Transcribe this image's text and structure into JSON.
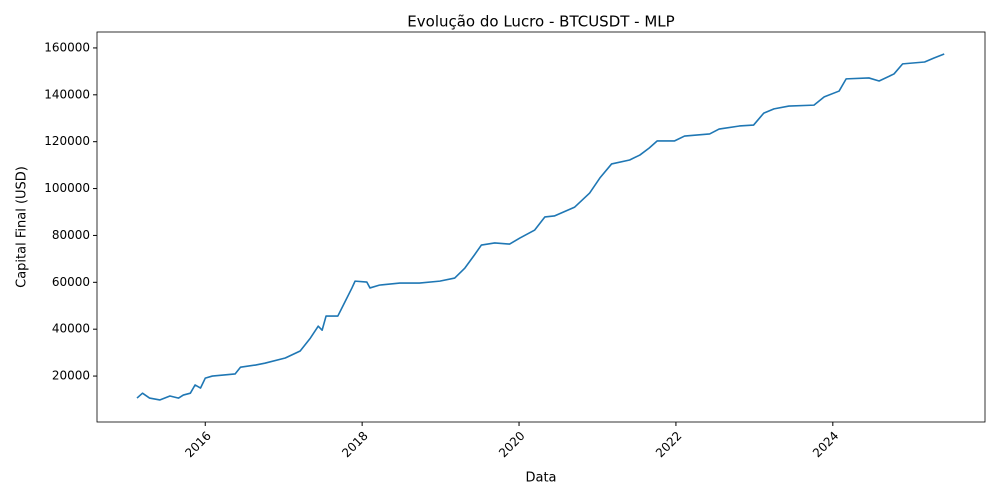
{
  "chart_data": {
    "type": "line",
    "title": "Evolução do Lucro - BTCUSDT - MLP",
    "x_label": "Data",
    "y_label": "Capital Final (USD)",
    "x": [
      2015.13,
      2015.2,
      2015.29,
      2015.42,
      2015.55,
      2015.66,
      2015.72,
      2015.81,
      2015.87,
      2015.94,
      2016.0,
      2016.09,
      2016.38,
      2016.45,
      2016.64,
      2016.76,
      2017.02,
      2017.21,
      2017.34,
      2017.44,
      2017.49,
      2017.54,
      2017.69,
      2017.78,
      2017.87,
      2017.91,
      2018.06,
      2018.1,
      2018.22,
      2018.48,
      2018.73,
      2018.99,
      2019.18,
      2019.31,
      2019.43,
      2019.52,
      2019.69,
      2019.88,
      2020.01,
      2020.2,
      2020.33,
      2020.45,
      2020.71,
      2020.9,
      2021.03,
      2021.18,
      2021.41,
      2021.54,
      2021.66,
      2021.76,
      2021.98,
      2022.11,
      2022.43,
      2022.55,
      2022.81,
      2022.99,
      2023.12,
      2023.25,
      2023.44,
      2023.76,
      2023.89,
      2024.08,
      2024.17,
      2024.46,
      2024.59,
      2024.78,
      2024.89,
      2025.17,
      2025.29,
      2025.42
    ],
    "values": [
      10600,
      12700,
      10600,
      9800,
      11500,
      10600,
      11900,
      12700,
      16200,
      14900,
      19100,
      20000,
      20900,
      23800,
      24700,
      25500,
      27700,
      30700,
      36200,
      41300,
      39600,
      45600,
      45600,
      51600,
      57600,
      60500,
      60100,
      57600,
      58800,
      59700,
      59700,
      60500,
      61800,
      66100,
      71600,
      75900,
      76800,
      76300,
      78900,
      82300,
      87900,
      88300,
      92100,
      98100,
      104500,
      110500,
      112200,
      114300,
      117300,
      120300,
      120300,
      122400,
      123300,
      125400,
      126700,
      127100,
      132200,
      134000,
      135200,
      135600,
      139100,
      141600,
      146800,
      147200,
      145900,
      148900,
      153200,
      154000,
      155700,
      157400
    ],
    "color": "#1f77b4",
    "xlim": [
      2014.62,
      2025.94
    ],
    "xticks": [
      2016,
      2018,
      2020,
      2022,
      2024
    ],
    "ylim": [
      400,
      166800
    ],
    "yticks": [
      20000,
      40000,
      60000,
      80000,
      100000,
      120000,
      140000,
      160000
    ]
  }
}
